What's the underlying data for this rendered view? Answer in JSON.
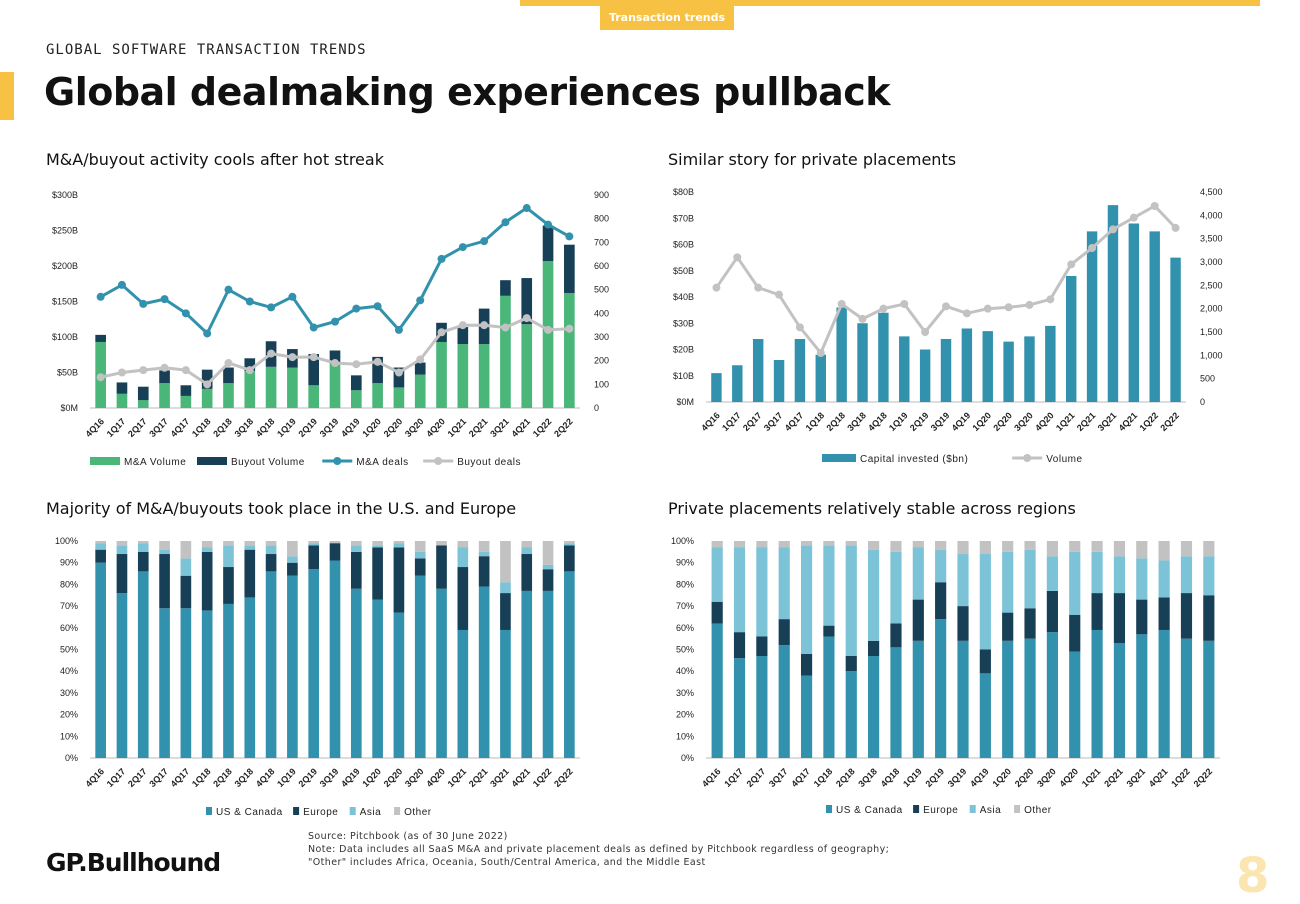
{
  "header": {
    "tag": "Transaction trends",
    "kicker": "GLOBAL SOFTWARE TRANSACTION TRENDS",
    "title": "Global dealmaking experiences pullback"
  },
  "colors": {
    "accent": "#f7c243",
    "green": "#4bb67a",
    "navy": "#173f55",
    "teal": "#3292ad",
    "lightblue": "#7cc3d8",
    "gray": "#c2c2c2"
  },
  "chart_data": [
    {
      "id": "ma",
      "type": "bar",
      "subtitle": "M&A/buyout activity cools after hot streak",
      "categories": [
        "4Q16",
        "1Q17",
        "2Q17",
        "3Q17",
        "4Q17",
        "1Q18",
        "2Q18",
        "3Q18",
        "4Q18",
        "1Q19",
        "2Q19",
        "3Q19",
        "4Q19",
        "1Q20",
        "2Q20",
        "3Q20",
        "4Q20",
        "1Q21",
        "2Q21",
        "3Q21",
        "4Q21",
        "1Q22",
        "2Q22"
      ],
      "ylim": [
        0,
        300
      ],
      "y2lim": [
        0,
        900
      ],
      "yticks": [
        "$0M",
        "$50B",
        "$100B",
        "$150B",
        "$200B",
        "$250B",
        "$300B"
      ],
      "y2ticks": [
        "0",
        "100",
        "200",
        "300",
        "400",
        "500",
        "600",
        "700",
        "800",
        "900"
      ],
      "series": [
        {
          "name": "M&A Volume",
          "kind": "bar",
          "color": "#4bb67a",
          "values": [
            93,
            20,
            11,
            35,
            17,
            27,
            35,
            52,
            58,
            57,
            32,
            63,
            25,
            35,
            29,
            47,
            93,
            90,
            90,
            158,
            118,
            207,
            162
          ]
        },
        {
          "name": "Buyout Volume",
          "kind": "bar",
          "color": "#173f55",
          "values": [
            10,
            16,
            19,
            18,
            15,
            27,
            22,
            18,
            36,
            26,
            44,
            18,
            21,
            37,
            28,
            17,
            27,
            24,
            50,
            22,
            65,
            50,
            68
          ]
        },
        {
          "name": "M&A deals",
          "kind": "line",
          "axis": "right",
          "color": "#3292ad",
          "values": [
            470,
            520,
            440,
            460,
            400,
            315,
            500,
            450,
            425,
            470,
            340,
            365,
            420,
            430,
            330,
            455,
            630,
            680,
            705,
            785,
            845,
            775,
            725
          ]
        },
        {
          "name": "Buyout deals",
          "kind": "line",
          "axis": "right",
          "color": "#c2c2c2",
          "values": [
            130,
            150,
            160,
            170,
            160,
            100,
            190,
            160,
            230,
            215,
            215,
            190,
            185,
            195,
            150,
            205,
            320,
            350,
            350,
            340,
            380,
            330,
            335
          ]
        }
      ]
    },
    {
      "id": "pp",
      "type": "bar",
      "subtitle": "Similar story for private placements",
      "categories": [
        "4Q16",
        "1Q17",
        "2Q17",
        "3Q17",
        "4Q17",
        "1Q18",
        "2Q18",
        "3Q18",
        "4Q18",
        "1Q19",
        "2Q19",
        "3Q19",
        "4Q19",
        "1Q20",
        "2Q20",
        "3Q20",
        "4Q20",
        "1Q21",
        "2Q21",
        "3Q21",
        "4Q21",
        "1Q22",
        "2Q22"
      ],
      "ylim": [
        0,
        80
      ],
      "y2lim": [
        0,
        4500
      ],
      "yticks": [
        "$0M",
        "$10B",
        "$20B",
        "$30B",
        "$40B",
        "$50B",
        "$60B",
        "$70B",
        "$80B"
      ],
      "y2ticks": [
        "0",
        "500",
        "1,000",
        "1,500",
        "2,000",
        "2,500",
        "3,000",
        "3,500",
        "4,000",
        "4,500"
      ],
      "series": [
        {
          "name": "Capital invested ($bn)",
          "kind": "bar",
          "color": "#3292ad",
          "values": [
            11,
            14,
            24,
            16,
            24,
            18,
            36,
            30,
            34,
            25,
            20,
            24,
            28,
            27,
            23,
            25,
            29,
            48,
            65,
            75,
            68,
            65,
            55
          ]
        },
        {
          "name": "Volume",
          "kind": "line",
          "axis": "right",
          "color": "#c2c2c2",
          "values": [
            2450,
            3100,
            2450,
            2300,
            1600,
            1050,
            2100,
            1780,
            2000,
            2100,
            1500,
            2050,
            1900,
            2000,
            2030,
            2080,
            2200,
            2950,
            3300,
            3700,
            3950,
            4200,
            3730
          ]
        }
      ]
    },
    {
      "id": "region1",
      "type": "bar",
      "subtitle": "Majority of M&A/buyouts took place in the U.S. and Europe",
      "categories": [
        "4Q16",
        "1Q17",
        "2Q17",
        "3Q17",
        "4Q17",
        "1Q18",
        "2Q18",
        "3Q18",
        "4Q18",
        "1Q19",
        "2Q19",
        "3Q19",
        "4Q19",
        "1Q20",
        "2Q20",
        "3Q20",
        "4Q20",
        "1Q21",
        "2Q21",
        "3Q21",
        "4Q21",
        "1Q22",
        "2Q22"
      ],
      "ylim": [
        0,
        100
      ],
      "yticks": [
        "0%",
        "10%",
        "20%",
        "30%",
        "40%",
        "50%",
        "60%",
        "70%",
        "80%",
        "90%",
        "100%"
      ],
      "series": [
        {
          "name": "US & Canada",
          "color": "#3292ad",
          "values": [
            90,
            76,
            86,
            69,
            69,
            68,
            71,
            74,
            86,
            84,
            87,
            91,
            78,
            73,
            67,
            84,
            78,
            59,
            79,
            59,
            77,
            77,
            86
          ]
        },
        {
          "name": "Europe",
          "color": "#173f55",
          "values": [
            6,
            18,
            9,
            25,
            15,
            27,
            17,
            22,
            8,
            6,
            11,
            8,
            17,
            24,
            30,
            8,
            20,
            29,
            14,
            17,
            17,
            10,
            12
          ]
        },
        {
          "name": "Asia",
          "color": "#7cc3d8",
          "values": [
            3,
            4,
            4,
            2,
            8,
            2,
            10,
            2,
            4,
            3,
            1,
            0,
            3,
            1,
            2,
            3,
            0,
            9,
            2,
            5,
            3,
            2,
            1
          ]
        },
        {
          "name": "Other",
          "color": "#c2c2c2",
          "values": [
            1,
            2,
            1,
            4,
            8,
            3,
            2,
            2,
            2,
            7,
            1,
            1,
            2,
            2,
            1,
            5,
            2,
            3,
            5,
            19,
            3,
            11,
            1
          ]
        }
      ]
    },
    {
      "id": "region2",
      "type": "bar",
      "subtitle": "Private placements relatively stable across regions",
      "categories": [
        "4Q16",
        "1Q17",
        "2Q17",
        "3Q17",
        "4Q17",
        "1Q18",
        "2Q18",
        "3Q18",
        "4Q18",
        "1Q19",
        "2Q19",
        "3Q19",
        "4Q19",
        "1Q20",
        "2Q20",
        "3Q20",
        "4Q20",
        "1Q21",
        "2Q21",
        "3Q21",
        "4Q21",
        "1Q22",
        "2Q22"
      ],
      "ylim": [
        0,
        100
      ],
      "yticks": [
        "0%",
        "10%",
        "20%",
        "30%",
        "40%",
        "50%",
        "60%",
        "70%",
        "80%",
        "90%",
        "100%"
      ],
      "series": [
        {
          "name": "US & Canada",
          "color": "#3292ad",
          "values": [
            62,
            46,
            47,
            52,
            38,
            56,
            40,
            47,
            51,
            54,
            64,
            54,
            39,
            54,
            55,
            58,
            49,
            59,
            53,
            57,
            59,
            55,
            54
          ]
        },
        {
          "name": "Europe",
          "color": "#173f55",
          "values": [
            10,
            12,
            9,
            12,
            10,
            5,
            7,
            7,
            11,
            19,
            17,
            16,
            11,
            13,
            14,
            19,
            17,
            17,
            23,
            16,
            15,
            21,
            21
          ]
        },
        {
          "name": "Asia",
          "color": "#7cc3d8",
          "values": [
            25,
            39,
            41,
            33,
            50,
            37,
            51,
            42,
            33,
            24,
            15,
            24,
            44,
            28,
            27,
            16,
            29,
            19,
            17,
            19,
            17,
            17,
            18
          ]
        },
        {
          "name": "Other",
          "color": "#c2c2c2",
          "values": [
            3,
            3,
            3,
            3,
            2,
            2,
            2,
            4,
            5,
            3,
            4,
            6,
            6,
            5,
            4,
            7,
            5,
            5,
            7,
            8,
            9,
            7,
            7
          ]
        }
      ]
    }
  ],
  "footer": {
    "source": "Source: Pitchbook (as of 30 June 2022)",
    "note1": "Note: Data includes all SaaS M&A and private placement deals as defined by Pitchbook regardless of geography;",
    "note2": "\"Other\" includes Africa, Oceania, South/Central America, and the Middle East",
    "logo": "GP.Bullhound",
    "page": "8"
  }
}
